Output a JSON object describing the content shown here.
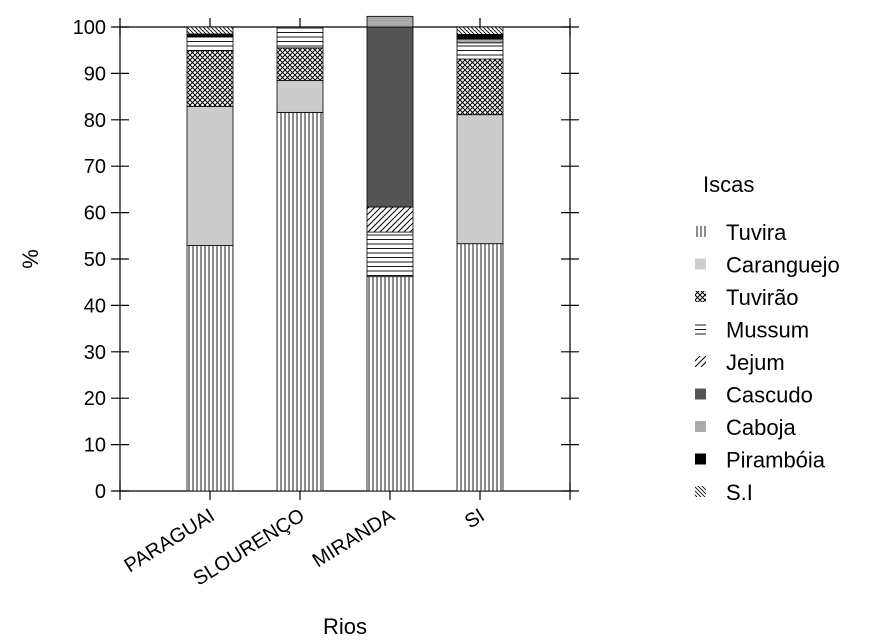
{
  "chart_data": {
    "type": "bar",
    "stacked": true,
    "title": "",
    "xlabel": "Rios",
    "ylabel": "%",
    "ylim": [
      0,
      100
    ],
    "yticks": [
      0,
      10,
      20,
      30,
      40,
      50,
      60,
      70,
      80,
      90,
      100
    ],
    "categories": [
      "PARAGUAI",
      "SLOURENÇO",
      "MIRANDA",
      "SI"
    ],
    "legend_title": "Iscas",
    "legend_position": "right",
    "series": [
      {
        "name": "Tuvira",
        "pattern": "vertical-lines",
        "values": [
          52.9,
          81.6,
          46.2,
          53.3
        ]
      },
      {
        "name": "Caranguejo",
        "pattern": "light-gray-fill",
        "values": [
          30.0,
          6.9,
          0.0,
          27.8
        ]
      },
      {
        "name": "Tuvirão",
        "pattern": "crosshatch",
        "values": [
          12.0,
          7.0,
          0.0,
          12.0
        ]
      },
      {
        "name": "Mussum",
        "pattern": "horizontal-lines",
        "values": [
          3.0,
          4.5,
          9.6,
          3.5
        ]
      },
      {
        "name": "Jejum",
        "pattern": "diagonal-lines",
        "values": [
          0.0,
          0.0,
          5.4,
          0.0
        ]
      },
      {
        "name": "Cascudo",
        "pattern": "dark-gray-fill",
        "values": [
          0.0,
          0.0,
          38.8,
          0.0
        ]
      },
      {
        "name": "Caboja",
        "pattern": "mid-gray-fill",
        "values": [
          0.0,
          0.0,
          2.3,
          0.8
        ]
      },
      {
        "name": "Pirambóia",
        "pattern": "black-fill",
        "values": [
          0.6,
          0.0,
          0.0,
          1.0
        ]
      },
      {
        "name": "S.I",
        "pattern": "back-diagonal-lines",
        "values": [
          1.5,
          0.0,
          0.0,
          1.6
        ]
      }
    ],
    "grid": false
  }
}
